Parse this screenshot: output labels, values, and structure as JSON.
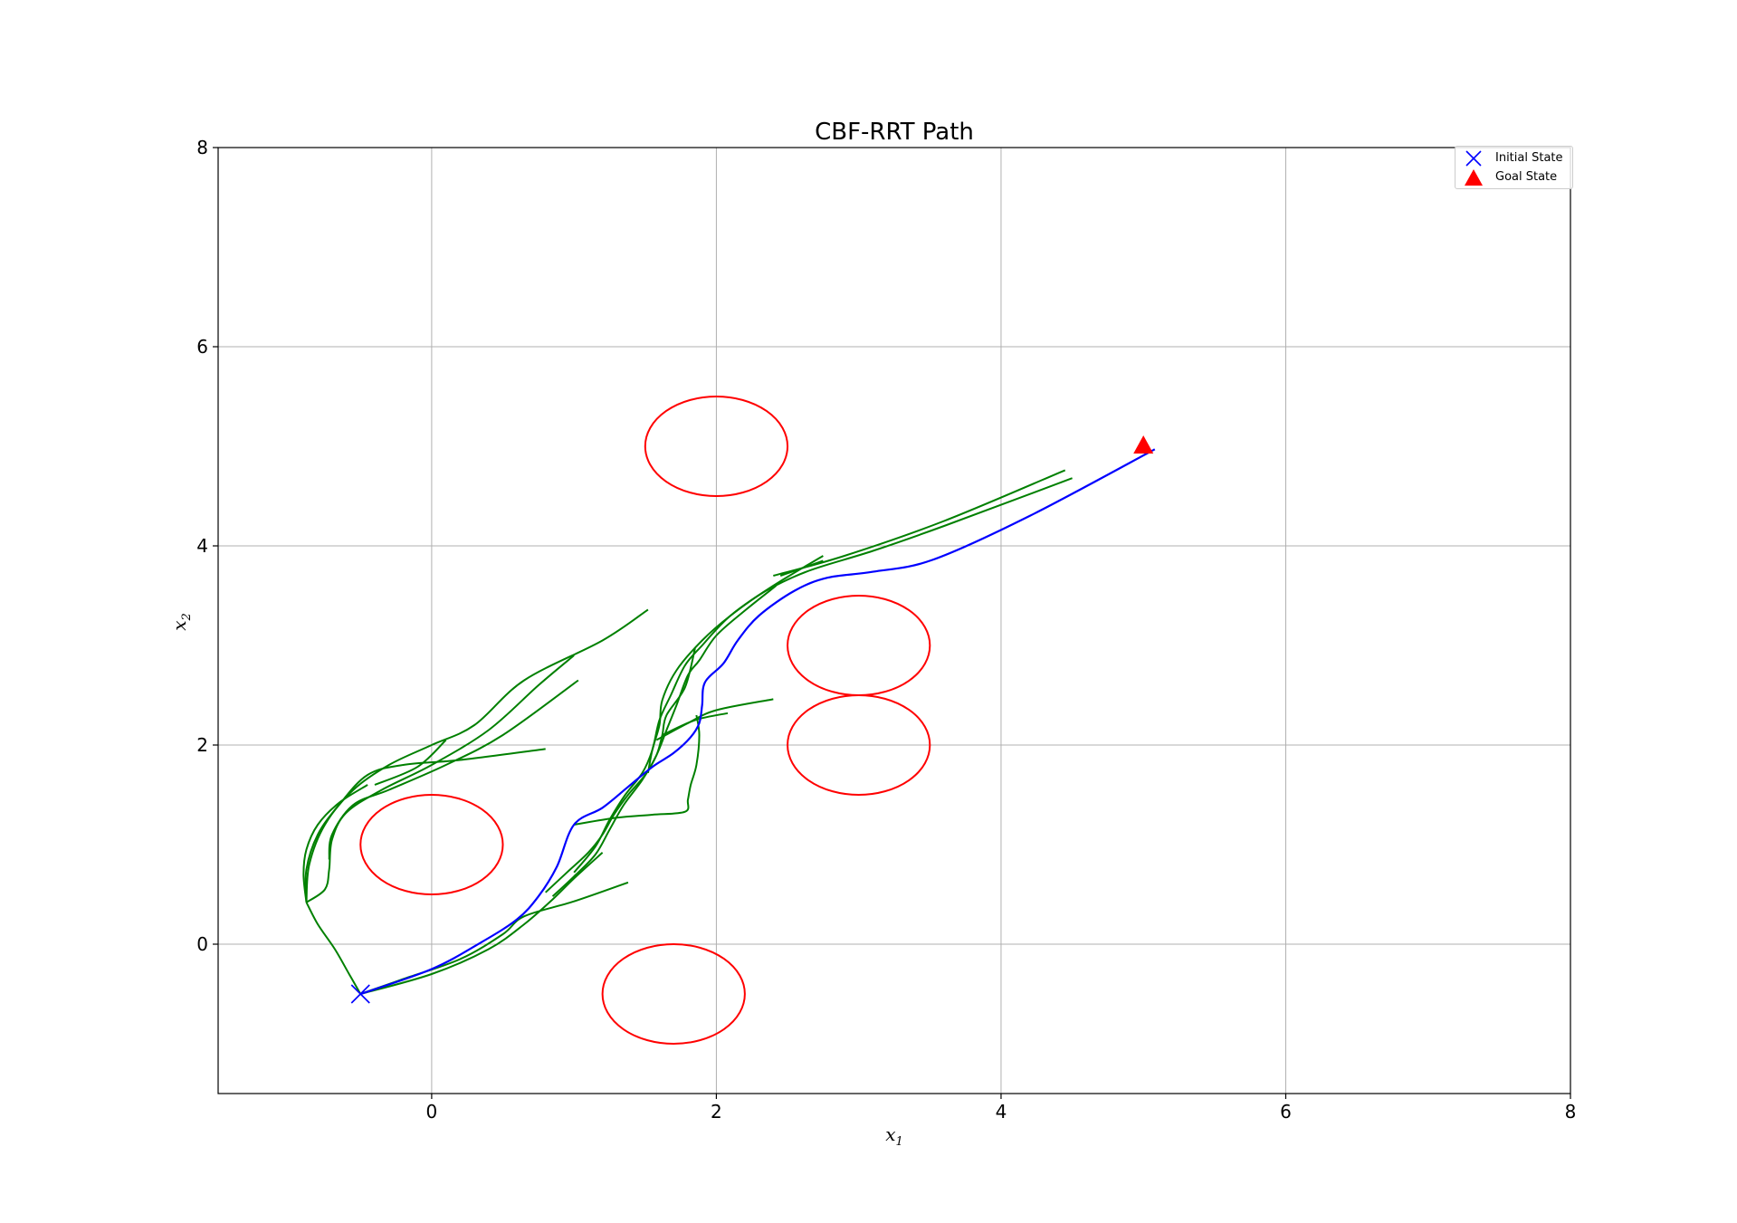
{
  "chart_data": {
    "type": "line",
    "title": "CBF-RRT Path",
    "xlabel": "x1",
    "ylabel": "x2",
    "xlim": [
      -1.5,
      8
    ],
    "ylim": [
      -1.5,
      8
    ],
    "xticks": [
      0,
      2,
      4,
      6,
      8
    ],
    "yticks": [
      0,
      2,
      4,
      6,
      8
    ],
    "grid": true,
    "legend_position": "top-right",
    "legend": [
      {
        "name": "Initial State",
        "marker": "x",
        "color": "#0000ff"
      },
      {
        "name": "Goal State",
        "marker": "triangle",
        "color": "#ff0000"
      }
    ],
    "initial_state": [
      -0.5,
      -0.5
    ],
    "goal_state": [
      5.0,
      5.0
    ],
    "obstacles": {
      "color": "#ff0000",
      "radius": 0.5,
      "centers": [
        [
          2.0,
          5.0
        ],
        [
          3.0,
          3.0
        ],
        [
          3.0,
          2.0
        ],
        [
          0.0,
          1.0
        ],
        [
          1.7,
          -0.5
        ]
      ]
    },
    "tree": {
      "color": "#008000",
      "branches": [
        [
          [
            -0.5,
            -0.5
          ],
          [
            -0.58,
            -0.3
          ],
          [
            -0.68,
            -0.05
          ],
          [
            -0.8,
            0.2
          ],
          [
            -0.88,
            0.42
          ]
        ],
        [
          [
            -0.88,
            0.42
          ],
          [
            -0.9,
            0.7
          ],
          [
            -0.88,
            0.95
          ],
          [
            -0.8,
            1.2
          ],
          [
            -0.65,
            1.42
          ],
          [
            -0.45,
            1.6
          ]
        ],
        [
          [
            -0.88,
            0.42
          ],
          [
            -0.88,
            0.75
          ],
          [
            -0.8,
            1.1
          ],
          [
            -0.65,
            1.4
          ],
          [
            -0.45,
            1.7
          ],
          [
            -0.2,
            1.8
          ],
          [
            0.2,
            1.85
          ],
          [
            0.8,
            1.96
          ]
        ],
        [
          [
            -0.88,
            0.42
          ],
          [
            -0.86,
            0.8
          ],
          [
            -0.75,
            1.2
          ],
          [
            -0.55,
            1.55
          ],
          [
            -0.3,
            1.8
          ],
          [
            0.0,
            2.0
          ],
          [
            0.3,
            2.2
          ],
          [
            0.65,
            2.65
          ],
          [
            1.2,
            3.05
          ],
          [
            1.52,
            3.36
          ]
        ],
        [
          [
            -0.88,
            0.42
          ],
          [
            -0.75,
            0.55
          ],
          [
            -0.72,
            0.75
          ],
          [
            -0.7,
            1.05
          ],
          [
            -0.6,
            1.32
          ],
          [
            -0.35,
            1.55
          ],
          [
            0.0,
            1.8
          ],
          [
            0.4,
            2.15
          ],
          [
            0.75,
            2.6
          ],
          [
            1.0,
            2.9
          ]
        ],
        [
          [
            -0.72,
            0.85
          ],
          [
            -0.7,
            1.1
          ],
          [
            -0.55,
            1.4
          ],
          [
            -0.3,
            1.55
          ],
          [
            0.1,
            1.8
          ],
          [
            0.5,
            2.1
          ],
          [
            1.03,
            2.65
          ]
        ],
        [
          [
            -0.4,
            1.6
          ],
          [
            -0.1,
            1.78
          ],
          [
            0.1,
            2.05
          ]
        ],
        [
          [
            -0.5,
            -0.5
          ],
          [
            -0.2,
            -0.35
          ],
          [
            0.2,
            -0.15
          ],
          [
            0.5,
            0.1
          ],
          [
            0.65,
            0.28
          ],
          [
            1.0,
            0.43
          ],
          [
            1.38,
            0.62
          ]
        ],
        [
          [
            -0.5,
            -0.5
          ],
          [
            0.0,
            -0.3
          ],
          [
            0.4,
            -0.05
          ],
          [
            0.65,
            0.2
          ],
          [
            0.85,
            0.45
          ],
          [
            1.0,
            0.66
          ],
          [
            1.2,
            0.92
          ]
        ],
        [
          [
            0.8,
            0.52
          ],
          [
            0.95,
            0.72
          ],
          [
            1.1,
            0.92
          ],
          [
            1.2,
            1.1
          ],
          [
            1.28,
            1.3
          ],
          [
            1.38,
            1.5
          ],
          [
            1.5,
            1.7
          ],
          [
            1.58,
            1.9
          ],
          [
            1.62,
            2.1
          ],
          [
            1.65,
            2.3
          ],
          [
            1.78,
            2.58
          ],
          [
            1.85,
            2.97
          ]
        ],
        [
          [
            0.85,
            0.48
          ],
          [
            1.0,
            0.68
          ],
          [
            1.15,
            0.9
          ],
          [
            1.25,
            1.15
          ],
          [
            1.35,
            1.4
          ],
          [
            1.48,
            1.65
          ],
          [
            1.58,
            1.9
          ],
          [
            1.65,
            2.15
          ],
          [
            1.72,
            2.4
          ],
          [
            1.8,
            2.7
          ],
          [
            1.88,
            2.85
          ],
          [
            2.0,
            3.1
          ],
          [
            2.2,
            3.35
          ],
          [
            2.42,
            3.6
          ]
        ],
        [
          [
            1.0,
            0.72
          ],
          [
            1.15,
            0.98
          ],
          [
            1.25,
            1.25
          ],
          [
            1.36,
            1.5
          ],
          [
            1.48,
            1.72
          ],
          [
            1.55,
            1.95
          ],
          [
            1.6,
            2.25
          ],
          [
            1.68,
            2.5
          ],
          [
            1.78,
            2.8
          ],
          [
            1.9,
            3.0
          ],
          [
            2.1,
            3.3
          ],
          [
            2.4,
            3.6
          ],
          [
            2.75,
            3.9
          ]
        ],
        [
          [
            1.0,
            1.2
          ],
          [
            1.3,
            1.27
          ],
          [
            1.55,
            1.3
          ],
          [
            1.78,
            1.33
          ],
          [
            1.8,
            1.45
          ],
          [
            1.82,
            1.6
          ],
          [
            1.86,
            1.8
          ],
          [
            1.88,
            2.1
          ],
          [
            1.86,
            2.3
          ]
        ],
        [
          [
            1.52,
            1.72
          ],
          [
            1.55,
            1.95
          ],
          [
            1.6,
            2.2
          ],
          [
            1.62,
            2.45
          ],
          [
            1.72,
            2.75
          ],
          [
            1.9,
            3.05
          ],
          [
            2.1,
            3.3
          ],
          [
            2.35,
            3.55
          ],
          [
            2.65,
            3.75
          ],
          [
            3.1,
            3.95
          ],
          [
            3.6,
            4.2
          ],
          [
            4.5,
            4.68
          ]
        ],
        [
          [
            1.62,
            2.1
          ],
          [
            1.85,
            2.25
          ],
          [
            2.08,
            2.32
          ]
        ],
        [
          [
            1.58,
            2.05
          ],
          [
            1.8,
            2.22
          ],
          [
            2.0,
            2.35
          ],
          [
            2.4,
            2.46
          ]
        ],
        [
          [
            2.4,
            3.7
          ],
          [
            2.9,
            3.9
          ],
          [
            3.6,
            4.25
          ],
          [
            4.45,
            4.76
          ]
        ],
        [
          [
            2.45,
            3.7
          ],
          [
            2.75,
            3.85
          ]
        ]
      ]
    },
    "path": {
      "color": "#0000ff",
      "points": [
        [
          -0.5,
          -0.5
        ],
        [
          0.0,
          -0.25
        ],
        [
          0.35,
          0.02
        ],
        [
          0.6,
          0.25
        ],
        [
          0.75,
          0.48
        ],
        [
          0.88,
          0.78
        ],
        [
          1.0,
          1.2
        ],
        [
          1.2,
          1.37
        ],
        [
          1.38,
          1.58
        ],
        [
          1.55,
          1.78
        ],
        [
          1.7,
          1.92
        ],
        [
          1.82,
          2.08
        ],
        [
          1.88,
          2.22
        ],
        [
          1.9,
          2.4
        ],
        [
          1.92,
          2.63
        ],
        [
          2.05,
          2.82
        ],
        [
          2.15,
          3.05
        ],
        [
          2.3,
          3.3
        ],
        [
          2.55,
          3.55
        ],
        [
          2.78,
          3.68
        ],
        [
          3.1,
          3.74
        ],
        [
          3.52,
          3.86
        ],
        [
          4.2,
          4.3
        ],
        [
          5.08,
          4.97
        ]
      ]
    }
  }
}
